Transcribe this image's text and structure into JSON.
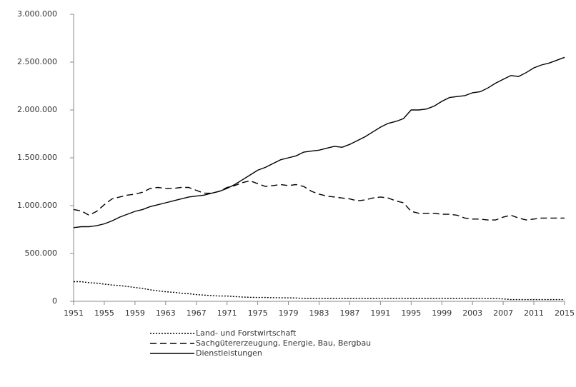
{
  "chart_data": {
    "type": "line",
    "x": [
      1951,
      1952,
      1953,
      1954,
      1955,
      1956,
      1957,
      1958,
      1959,
      1960,
      1961,
      1962,
      1963,
      1964,
      1965,
      1966,
      1967,
      1968,
      1969,
      1970,
      1971,
      1972,
      1973,
      1974,
      1975,
      1976,
      1977,
      1978,
      1979,
      1980,
      1981,
      1982,
      1983,
      1984,
      1985,
      1986,
      1987,
      1988,
      1989,
      1990,
      1991,
      1992,
      1993,
      1994,
      1995,
      1996,
      1997,
      1998,
      1999,
      2000,
      2001,
      2002,
      2003,
      2004,
      2005,
      2006,
      2007,
      2008,
      2009,
      2010,
      2011,
      2012,
      2013,
      2014,
      2015
    ],
    "series": [
      {
        "name": "Land- und Forstwirtschaft",
        "color": "#000000",
        "dash": "dotted",
        "values": [
          205000,
          205000,
          195000,
          190000,
          180000,
          170000,
          165000,
          155000,
          145000,
          135000,
          120000,
          110000,
          100000,
          95000,
          85000,
          80000,
          70000,
          65000,
          60000,
          55000,
          55000,
          50000,
          45000,
          42000,
          40000,
          40000,
          38000,
          37000,
          36000,
          35000,
          30000,
          30000,
          30000,
          30000,
          30000,
          30000,
          30000,
          30000,
          30000,
          30000,
          30000,
          30000,
          30000,
          30000,
          30000,
          30000,
          30000,
          30000,
          30000,
          30000,
          30000,
          30000,
          30000,
          30000,
          28000,
          28000,
          25000,
          18000,
          18000,
          18000,
          18000,
          18000,
          18000,
          18000,
          18000
        ]
      },
      {
        "name": "Sachgütererzeugung, Energie, Bau, Bergbau",
        "color": "#000000",
        "dash": "dashed",
        "values": [
          960000,
          945000,
          900000,
          940000,
          1010000,
          1070000,
          1090000,
          1110000,
          1120000,
          1140000,
          1180000,
          1190000,
          1180000,
          1180000,
          1190000,
          1190000,
          1160000,
          1130000,
          1130000,
          1150000,
          1190000,
          1210000,
          1240000,
          1260000,
          1230000,
          1200000,
          1210000,
          1220000,
          1210000,
          1220000,
          1200000,
          1150000,
          1120000,
          1100000,
          1090000,
          1080000,
          1070000,
          1050000,
          1060000,
          1080000,
          1090000,
          1080000,
          1050000,
          1030000,
          940000,
          920000,
          920000,
          920000,
          910000,
          910000,
          900000,
          870000,
          860000,
          860000,
          850000,
          850000,
          880000,
          900000,
          870000,
          850000,
          860000,
          870000,
          870000,
          870000,
          870000
        ]
      },
      {
        "name": "Dienstleistungen",
        "color": "#000000",
        "dash": "solid",
        "values": [
          770000,
          780000,
          780000,
          790000,
          810000,
          840000,
          880000,
          910000,
          940000,
          960000,
          990000,
          1010000,
          1030000,
          1050000,
          1070000,
          1090000,
          1100000,
          1110000,
          1130000,
          1150000,
          1180000,
          1220000,
          1270000,
          1320000,
          1370000,
          1400000,
          1440000,
          1480000,
          1500000,
          1520000,
          1560000,
          1570000,
          1580000,
          1600000,
          1620000,
          1610000,
          1640000,
          1680000,
          1720000,
          1770000,
          1820000,
          1860000,
          1880000,
          1910000,
          2000000,
          2000000,
          2010000,
          2040000,
          2090000,
          2130000,
          2140000,
          2150000,
          2180000,
          2190000,
          2230000,
          2280000,
          2320000,
          2360000,
          2350000,
          2390000,
          2440000,
          2470000,
          2490000,
          2520000,
          2550000
        ]
      }
    ],
    "xlim": [
      1951,
      2015
    ],
    "xticks": [
      1951,
      1955,
      1959,
      1963,
      1967,
      1971,
      1975,
      1979,
      1983,
      1987,
      1991,
      1995,
      1999,
      2003,
      2007,
      2011,
      2015
    ],
    "ylim": [
      0,
      3000000
    ],
    "yticks": [
      0,
      {
        "value": 500000,
        "label": "500.000"
      },
      {
        "value": 1000000,
        "label": "1.000.000"
      },
      {
        "value": 1500000,
        "label": "1.500.000"
      },
      {
        "value": 2000000,
        "label": "2.000.000"
      },
      {
        "value": 2500000,
        "label": "2.500.000"
      },
      {
        "value": 3000000,
        "label": "3.000.000"
      }
    ],
    "legend": "bottom"
  }
}
